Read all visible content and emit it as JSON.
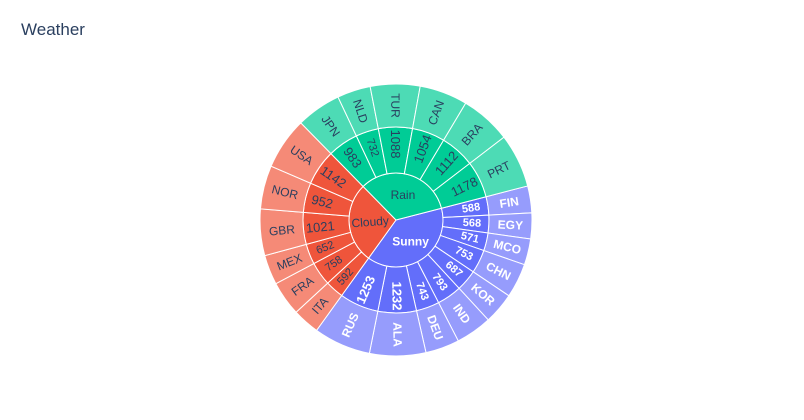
{
  "chart_data": {
    "type": "sunburst",
    "title": "Weather",
    "colors": {
      "Sunny": "#636efa",
      "Cloudy": "#ef553b",
      "Rain": "#00cc96",
      "Sunny_light": "#969cfc",
      "Cloudy_light": "#f58a77",
      "Rain_light": "#4ddbb5",
      "text_dark": "#2a3f5f",
      "text_light": "#ffffff"
    },
    "categories": [
      {
        "name": "Sunny",
        "children": [
          {
            "country": "FIN",
            "value": 588
          },
          {
            "country": "EGY",
            "value": 568
          },
          {
            "country": "MCO",
            "value": 571
          },
          {
            "country": "CHN",
            "value": 753
          },
          {
            "country": "KOR",
            "value": 687
          },
          {
            "country": "IND",
            "value": 793
          },
          {
            "country": "DEU",
            "value": 743
          },
          {
            "country": "ALA",
            "value": 1232
          },
          {
            "country": "RUS",
            "value": 1253
          }
        ]
      },
      {
        "name": "Cloudy",
        "children": [
          {
            "country": "ITA",
            "value": 592
          },
          {
            "country": "FRA",
            "value": 758
          },
          {
            "country": "MEX",
            "value": 652
          },
          {
            "country": "GBR",
            "value": 1021
          },
          {
            "country": "NOR",
            "value": 952
          },
          {
            "country": "USA",
            "value": 1142
          }
        ]
      },
      {
        "name": "Rain",
        "children": [
          {
            "country": "JPN",
            "value": 983
          },
          {
            "country": "NLD",
            "value": 732
          },
          {
            "country": "TUR",
            "value": 1088
          },
          {
            "country": "CAN",
            "value": 1054
          },
          {
            "country": "BRA",
            "value": 1112
          },
          {
            "country": "PRT",
            "value": 1178
          }
        ]
      }
    ]
  }
}
